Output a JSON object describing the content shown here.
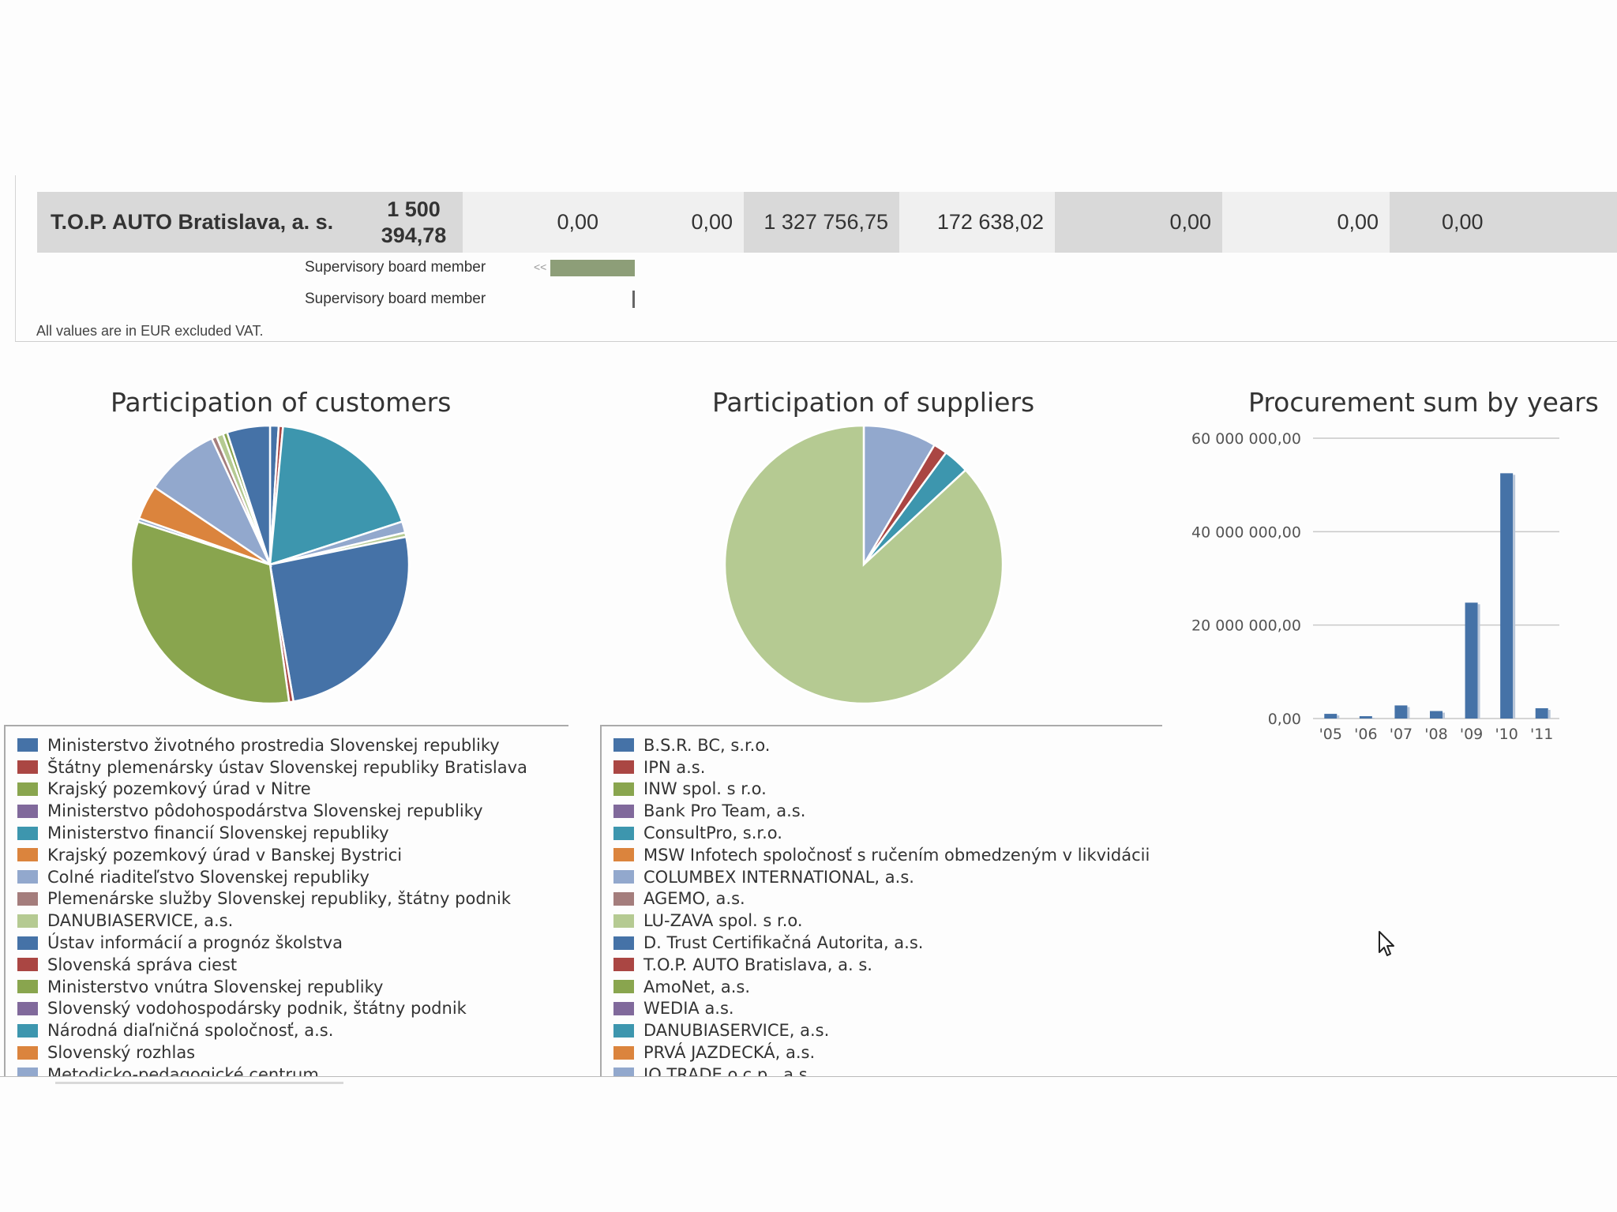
{
  "table": {
    "row": {
      "company": "T.O.P. AUTO Bratislava, a. s.",
      "total": "1 500 394,78",
      "values": [
        "0,00",
        "0,00",
        "1 327 756,75",
        "172 638,02",
        "0,00",
        "0,00",
        "0,00"
      ]
    },
    "roles": [
      "Supervisory board member",
      "Supervisory board member"
    ],
    "arrow": "<<",
    "note": "All values are in EUR excluded VAT."
  },
  "customers_chart": {
    "title": "Participation of customers",
    "legend": [
      "Ministerstvo životného prostredia Slovenskej republiky",
      "Štátny plemenársky ústav Slovenskej republiky Bratislava",
      "Krajský pozemkový úrad v Nitre",
      "Ministerstvo pôdohospodárstva Slovenskej republiky",
      "Ministerstvo financií Slovenskej republiky",
      "Krajský pozemkový úrad v Banskej Bystrici",
      "Colné riaditeľstvo Slovenskej republiky",
      "Plemenárske služby Slovenskej republiky, štátny podnik",
      "DANUBIASERVICE, a.s.",
      "Ústav informácií a prognóz školstva",
      "Slovenská správa ciest",
      "Ministerstvo vnútra Slovenskej republiky",
      "Slovenský vodohospodársky podnik, štátny podnik",
      "Národná diaľničná spoločnosť, a.s.",
      "Slovenský rozhlas",
      "Metodicko-pedagogické centrum"
    ]
  },
  "suppliers_chart": {
    "title": "Participation of suppliers",
    "legend": [
      "B.S.R. BC, s.r.o.",
      "IPN a.s.",
      "INW spol. s r.o.",
      "Bank Pro Team, a.s.",
      "ConsultPro, s.r.o.",
      "MSW Infotech spoločnosť s ručením obmedzeným v likvidácii",
      "COLUMBEX INTERNATIONAL, a.s.",
      "AGEMO, a.s.",
      "LU-ZAVA spol. s r.o.",
      "D. Trust Certifikačná Autorita, a.s.",
      "T.O.P. AUTO Bratislava, a. s.",
      "AmoNet, a.s.",
      "WEDIA a.s.",
      "DANUBIASERVICE, a.s.",
      "PRVÁ JAZDECKÁ, a.s.",
      "IO TRADE o.c.p., a.s."
    ]
  },
  "palette": [
    "#4572a7",
    "#aa4643",
    "#89a54e",
    "#80699b",
    "#3d96ae",
    "#db843d",
    "#92a8cd",
    "#a47d7c",
    "#b5ca92"
  ],
  "chart_data": [
    {
      "type": "pie",
      "title": "Participation of customers",
      "slices": [
        {
          "color": "#4572a7",
          "percent": 1.0
        },
        {
          "color": "#aa4643",
          "percent": 0.5
        },
        {
          "color": "#3d96ae",
          "percent": 18.5
        },
        {
          "color": "#92a8cd",
          "percent": 1.3
        },
        {
          "color": "#b5ca92",
          "percent": 0.5
        },
        {
          "color": "#4572a7",
          "percent": 25.5
        },
        {
          "color": "#aa4643",
          "percent": 0.5
        },
        {
          "color": "#89a54e",
          "percent": 32.2
        },
        {
          "color": "#92a8cd",
          "percent": 0.4
        },
        {
          "color": "#db843d",
          "percent": 4.0
        },
        {
          "color": "#92a8cd",
          "percent": 8.7
        },
        {
          "color": "#a47d7c",
          "percent": 0.6
        },
        {
          "color": "#b5ca92",
          "percent": 0.8
        },
        {
          "color": "#89a54e",
          "percent": 0.5
        },
        {
          "color": "#4572a7",
          "percent": 5.0
        }
      ]
    },
    {
      "type": "pie",
      "title": "Participation of suppliers",
      "slices": [
        {
          "color": "#92a8cd",
          "percent": 8.5
        },
        {
          "color": "#aa4643",
          "percent": 1.6
        },
        {
          "color": "#3d96ae",
          "percent": 3.0
        },
        {
          "color": "#b5ca92",
          "percent": 86.9
        }
      ]
    },
    {
      "type": "bar",
      "title": "Procurement sum by years",
      "categories": [
        "'05",
        "'06",
        "'07",
        "'08",
        "'09",
        "'10",
        "'11"
      ],
      "values": [
        1000000,
        500000,
        2800000,
        1600000,
        24800000,
        52500000,
        2200000
      ],
      "ylim": [
        0,
        60000000
      ],
      "yticks": [
        0,
        20000000,
        40000000,
        60000000
      ],
      "ytick_labels": [
        "0,00",
        "20 000 000,00",
        "40 000 000,00",
        "60 000 000,00"
      ],
      "color": "#4572a7",
      "grid": true
    }
  ]
}
